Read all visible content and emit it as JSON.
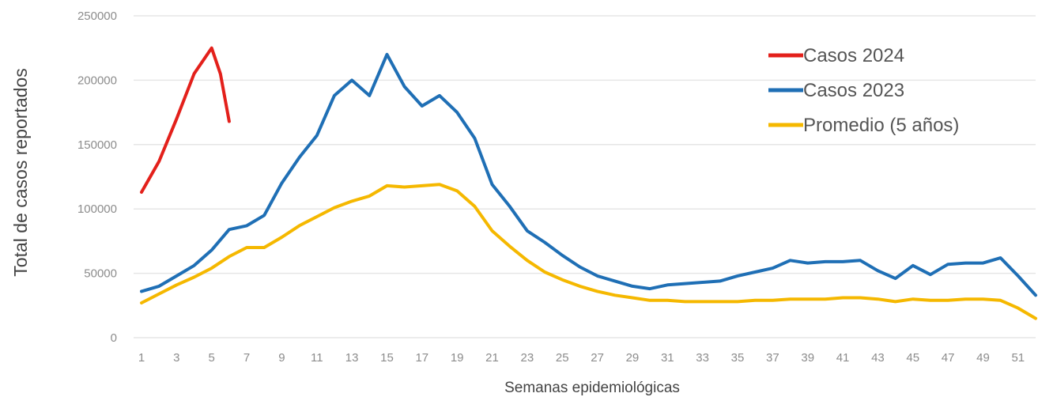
{
  "chart_data": {
    "type": "line",
    "xlabel": "Semanas epidemiológicas",
    "ylabel": "Total de casos reportados",
    "ylim": [
      0,
      250000
    ],
    "xlim": [
      1,
      52
    ],
    "yticks": [
      0,
      50000,
      100000,
      150000,
      200000,
      250000
    ],
    "ytick_labels": [
      "0",
      "50000",
      "100000",
      "150000",
      "200000",
      "250000"
    ],
    "xticks": [
      1,
      3,
      5,
      7,
      9,
      11,
      13,
      15,
      17,
      19,
      21,
      23,
      25,
      27,
      29,
      31,
      33,
      35,
      37,
      39,
      41,
      43,
      45,
      47,
      49,
      51
    ],
    "xtick_labels": [
      "1",
      "3",
      "5",
      "7",
      "9",
      "11",
      "13",
      "15",
      "17",
      "19",
      "21",
      "23",
      "25",
      "27",
      "29",
      "31",
      "33",
      "35",
      "37",
      "39",
      "41",
      "43",
      "45",
      "47",
      "49",
      "51"
    ],
    "grid": "horizontal",
    "legend_position": "top-right",
    "series": [
      {
        "name": "Casos 2024",
        "color": "#e3201b",
        "x": [
          1,
          2,
          3,
          4,
          5,
          5.5,
          6
        ],
        "values": [
          113000,
          137000,
          170000,
          205000,
          225000,
          205000,
          168000
        ]
      },
      {
        "name": "Casos 2023",
        "color": "#1f6fb5",
        "x": [
          1,
          2,
          3,
          4,
          5,
          6,
          7,
          8,
          9,
          10,
          11,
          12,
          13,
          14,
          15,
          16,
          17,
          18,
          19,
          20,
          21,
          22,
          23,
          24,
          25,
          26,
          27,
          28,
          29,
          30,
          31,
          32,
          33,
          34,
          35,
          36,
          37,
          38,
          39,
          40,
          41,
          42,
          43,
          44,
          45,
          46,
          47,
          48,
          49,
          50,
          51,
          52
        ],
        "values": [
          36000,
          40000,
          48000,
          56000,
          68000,
          84000,
          87000,
          95000,
          120000,
          140000,
          157000,
          188000,
          200000,
          188000,
          220000,
          195000,
          180000,
          188000,
          175000,
          155000,
          119000,
          102000,
          83000,
          74000,
          64000,
          55000,
          48000,
          44000,
          40000,
          38000,
          41000,
          42000,
          43000,
          44000,
          48000,
          51000,
          54000,
          60000,
          58000,
          59000,
          59000,
          60000,
          52000,
          46000,
          56000,
          49000,
          57000,
          58000,
          58000,
          62000,
          48000,
          33000
        ]
      },
      {
        "name": "Promedio (5 años)",
        "color": "#f5b800",
        "x": [
          1,
          2,
          3,
          4,
          5,
          6,
          7,
          8,
          9,
          10,
          11,
          12,
          13,
          14,
          15,
          16,
          17,
          18,
          19,
          20,
          21,
          22,
          23,
          24,
          25,
          26,
          27,
          28,
          29,
          30,
          31,
          32,
          33,
          34,
          35,
          36,
          37,
          38,
          39,
          40,
          41,
          42,
          43,
          44,
          45,
          46,
          47,
          48,
          49,
          50,
          51,
          52
        ],
        "values": [
          27000,
          34000,
          41000,
          47000,
          54000,
          63000,
          70000,
          70000,
          78000,
          87000,
          94000,
          101000,
          106000,
          110000,
          118000,
          117000,
          118000,
          119000,
          114000,
          102000,
          83000,
          71000,
          60000,
          51000,
          45000,
          40000,
          36000,
          33000,
          31000,
          29000,
          29000,
          28000,
          28000,
          28000,
          28000,
          29000,
          29000,
          30000,
          30000,
          30000,
          31000,
          31000,
          30000,
          28000,
          30000,
          29000,
          29000,
          30000,
          30000,
          29000,
          23000,
          15000
        ]
      }
    ]
  }
}
